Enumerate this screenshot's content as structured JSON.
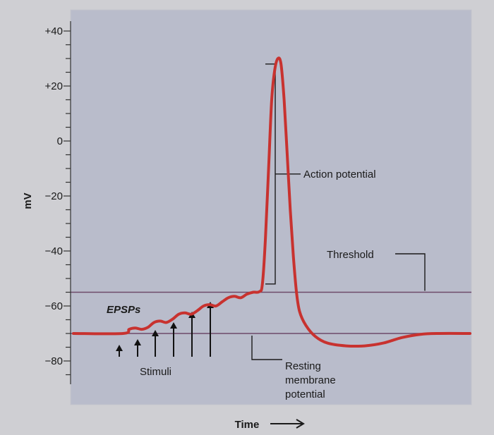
{
  "chart_data": {
    "type": "line",
    "title": "",
    "xlabel": "Time",
    "ylabel": "mV",
    "ylim": [
      -88,
      44
    ],
    "yticks": [
      {
        "value": 40,
        "label": "+40"
      },
      {
        "value": 20,
        "label": "+20"
      },
      {
        "value": 0,
        "label": "0"
      },
      {
        "value": -20,
        "label": "−20"
      },
      {
        "value": -40,
        "label": "−40"
      },
      {
        "value": -60,
        "label": "−60"
      },
      {
        "value": -80,
        "label": "−80"
      }
    ],
    "minor_tick_step": 5,
    "reference_lines": [
      {
        "name": "threshold",
        "value": -55
      },
      {
        "name": "resting",
        "value": -70
      }
    ],
    "series": [
      {
        "color": "#c8322f",
        "points": [
          [
            0,
            -70
          ],
          [
            16,
            -70
          ],
          [
            18,
            -68.5
          ],
          [
            20,
            -68
          ],
          [
            22,
            -68.5
          ],
          [
            24,
            -67.8
          ],
          [
            26,
            -66
          ],
          [
            28,
            -65.5
          ],
          [
            30,
            -66
          ],
          [
            32,
            -64.8
          ],
          [
            34,
            -63
          ],
          [
            36,
            -62.5
          ],
          [
            38,
            -63
          ],
          [
            40,
            -61.7
          ],
          [
            42,
            -60
          ],
          [
            44,
            -59.5
          ],
          [
            46,
            -60
          ],
          [
            48,
            -58.5
          ],
          [
            50,
            -57
          ],
          [
            52,
            -56.5
          ],
          [
            54,
            -57
          ],
          [
            56,
            -55.7
          ],
          [
            58,
            -55
          ],
          [
            60,
            -54.8
          ],
          [
            61,
            -52
          ],
          [
            62,
            -35
          ],
          [
            63,
            -10
          ],
          [
            64,
            15
          ],
          [
            65,
            26
          ],
          [
            66,
            30
          ],
          [
            67,
            28
          ],
          [
            68,
            15
          ],
          [
            69,
            -5
          ],
          [
            70,
            -25
          ],
          [
            71,
            -42
          ],
          [
            72,
            -55
          ],
          [
            73,
            -62
          ],
          [
            75,
            -67
          ],
          [
            78,
            -71
          ],
          [
            82,
            -73.5
          ],
          [
            88,
            -74.5
          ],
          [
            94,
            -74.5
          ],
          [
            100,
            -73.5
          ],
          [
            106,
            -71.5
          ],
          [
            112,
            -70.3
          ],
          [
            118,
            -70
          ],
          [
            128,
            -70
          ]
        ]
      }
    ],
    "annotations": {
      "action_potential": "Action potential",
      "threshold": "Threshold",
      "resting": [
        "Resting",
        "membrane",
        "potential"
      ],
      "epsps": "EPSPs",
      "stimuli": "Stimuli",
      "stimuli_count": 6
    }
  }
}
